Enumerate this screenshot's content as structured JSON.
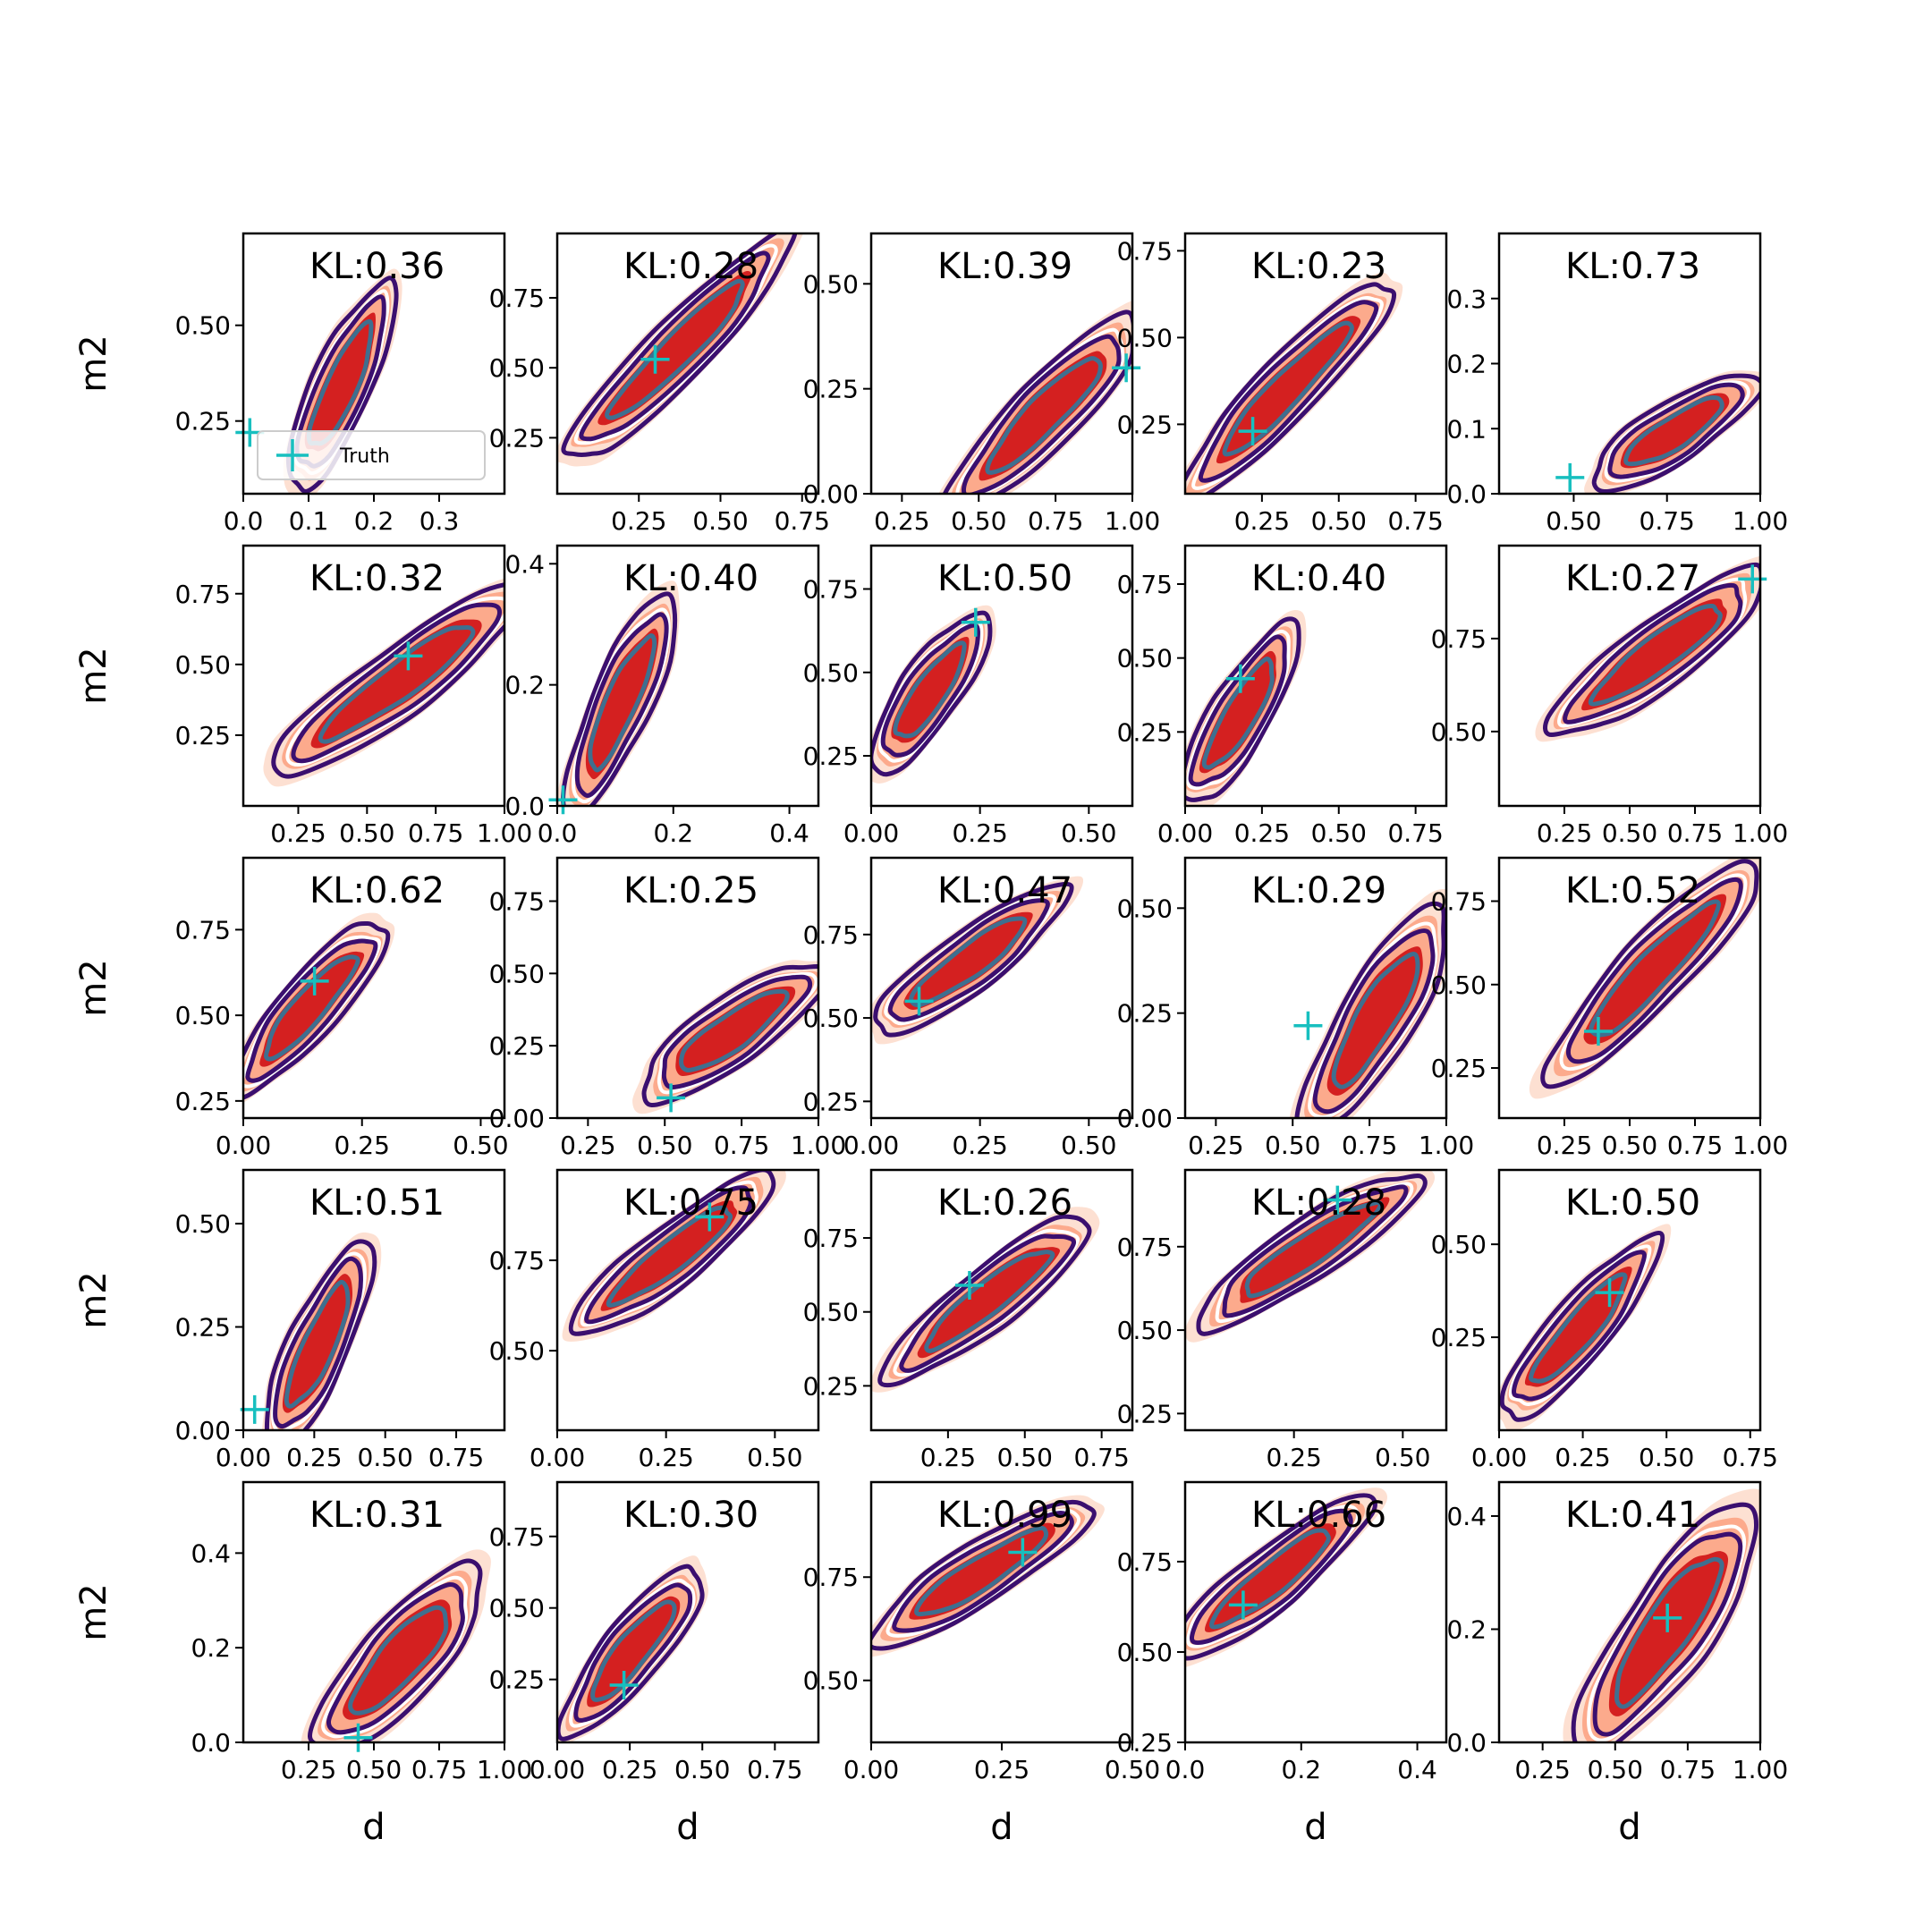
{
  "chart_data": {
    "type": "contour-grid",
    "xlabel": "d",
    "ylabel": "m2",
    "legend": {
      "label": "Truth",
      "placement": "lower-left",
      "panel": 0
    },
    "colors": {
      "fill_outer": "#fde0d2",
      "fill_mid": "#fcaa8c",
      "fill_inner": "#d42020",
      "line_outer": "#3b0f6f",
      "line_mid": "#ffffff",
      "line_inner": "#3f6f8f",
      "truth": "#17bfbf"
    },
    "panels": [
      {
        "kl": "KL:0.36",
        "xlim": [
          0,
          0.4
        ],
        "ylim": [
          0.06,
          0.74
        ],
        "xticks": [
          0.0,
          0.1,
          0.2,
          0.3
        ],
        "xticklabels": [
          "0.0",
          "0.1",
          "0.2",
          "0.3"
        ],
        "yticks": [
          0.25,
          0.5
        ],
        "yticklabels": [
          "0.25",
          "0.50"
        ],
        "truth": [
          0.01,
          0.22
        ],
        "blob": {
          "a": [
            0.1,
            0.15
          ],
          "b": [
            0.2,
            0.53
          ],
          "w": 0.065
        }
      },
      {
        "kl": "KL:0.28",
        "xlim": [
          0,
          0.8
        ],
        "ylim": [
          0.05,
          0.98
        ],
        "xticks": [
          0.25,
          0.5,
          0.75
        ],
        "xticklabels": [
          "0.25",
          "0.50",
          "0.75"
        ],
        "yticks": [
          0.25,
          0.5,
          0.75
        ],
        "yticklabels": [
          "0.25",
          "0.50",
          "0.75"
        ],
        "truth": [
          0.3,
          0.53
        ],
        "blob": {
          "a": [
            0.12,
            0.27
          ],
          "b": [
            0.62,
            0.86
          ],
          "w": 0.09
        }
      },
      {
        "kl": "KL:0.39",
        "xlim": [
          0.15,
          1.0
        ],
        "ylim": [
          0,
          0.62
        ],
        "xticks": [
          0.25,
          0.5,
          0.75,
          1.0
        ],
        "xticklabels": [
          "0.25",
          "0.50",
          "0.75",
          "1.00"
        ],
        "yticks": [
          0,
          0.25,
          0.5
        ],
        "yticklabels": [
          "0.00",
          "0.25",
          "0.50"
        ],
        "truth": [
          0.98,
          0.3
        ],
        "blob": {
          "a": [
            0.5,
            0.03
          ],
          "b": [
            0.93,
            0.35
          ],
          "w": 0.1
        }
      },
      {
        "kl": "KL:0.23",
        "xlim": [
          0,
          0.85
        ],
        "ylim": [
          0.05,
          0.8
        ],
        "xticks": [
          0.25,
          0.5,
          0.75
        ],
        "xticklabels": [
          "0.25",
          "0.50",
          "0.75"
        ],
        "yticks": [
          0.25,
          0.5,
          0.75
        ],
        "yticklabels": [
          "0.25",
          "0.50",
          "0.75"
        ],
        "truth": [
          0.22,
          0.23
        ],
        "blob": {
          "a": [
            0.08,
            0.12
          ],
          "b": [
            0.58,
            0.58
          ],
          "w": 0.09
        }
      },
      {
        "kl": "KL:0.73",
        "xlim": [
          0.3,
          1.0
        ],
        "ylim": [
          0,
          0.4
        ],
        "xticks": [
          0.5,
          0.75,
          1.0
        ],
        "xticklabels": [
          "0.50",
          "0.75",
          "1.00"
        ],
        "yticks": [
          0,
          0.1,
          0.2,
          0.3
        ],
        "yticklabels": [
          "0.0",
          "0.1",
          "0.2",
          "0.3"
        ],
        "truth": [
          0.49,
          0.025
        ],
        "blob": {
          "a": [
            0.62,
            0.04
          ],
          "b": [
            0.92,
            0.15
          ],
          "w": 0.055
        }
      },
      {
        "kl": "KL:0.32",
        "xlim": [
          0.05,
          1.0
        ],
        "ylim": [
          0,
          0.92
        ],
        "xticks": [
          0.25,
          0.5,
          0.75,
          1.0
        ],
        "xticklabels": [
          "0.25",
          "0.50",
          "0.75",
          "1.00"
        ],
        "yticks": [
          0.25,
          0.5,
          0.75
        ],
        "yticklabels": [
          "0.25",
          "0.50",
          "0.75"
        ],
        "truth": [
          0.65,
          0.53
        ],
        "blob": {
          "a": [
            0.28,
            0.2
          ],
          "b": [
            0.95,
            0.68
          ],
          "w": 0.1
        }
      },
      {
        "kl": "KL:0.40",
        "xlim": [
          0,
          0.45
        ],
        "ylim": [
          0,
          0.43
        ],
        "xticks": [
          0.0,
          0.2,
          0.4
        ],
        "xticklabels": [
          "0.0",
          "0.2",
          "0.4"
        ],
        "yticks": [
          0,
          0.2,
          0.4
        ],
        "yticklabels": [
          "0.0",
          "0.2",
          "0.4"
        ],
        "truth": [
          0.01,
          0.01
        ],
        "blob": {
          "a": [
            0.05,
            0.04
          ],
          "b": [
            0.17,
            0.3
          ],
          "w": 0.085
        }
      },
      {
        "kl": "KL:0.50",
        "xlim": [
          0,
          0.6
        ],
        "ylim": [
          0.1,
          0.88
        ],
        "xticks": [
          0.0,
          0.25,
          0.5
        ],
        "xticklabels": [
          "0.00",
          "0.25",
          "0.50"
        ],
        "yticks": [
          0.25,
          0.5,
          0.75
        ],
        "yticklabels": [
          "0.25",
          "0.50",
          "0.75"
        ],
        "truth": [
          0.24,
          0.65
        ],
        "blob": {
          "a": [
            0.05,
            0.28
          ],
          "b": [
            0.22,
            0.6
          ],
          "w": 0.065
        }
      },
      {
        "kl": "KL:0.40",
        "xlim": [
          0,
          0.85
        ],
        "ylim": [
          0,
          0.88
        ],
        "xticks": [
          0,
          0.25,
          0.5,
          0.75
        ],
        "xticklabels": [
          "0.00",
          "0.25",
          "0.50",
          "0.75"
        ],
        "yticks": [
          0.25,
          0.5,
          0.75
        ],
        "yticklabels": [
          "0.25",
          "0.50",
          "0.75"
        ],
        "truth": [
          0.18,
          0.43
        ],
        "blob": {
          "a": [
            0.06,
            0.1
          ],
          "b": [
            0.3,
            0.52
          ],
          "w": 0.08
        }
      },
      {
        "kl": "KL:0.27",
        "xlim": [
          0.0,
          1.0
        ],
        "ylim": [
          0.3,
          1.0
        ],
        "xticks": [
          0.25,
          0.5,
          0.75,
          1.0
        ],
        "xticklabels": [
          "0.25",
          "0.50",
          "0.75",
          "1.00"
        ],
        "yticks": [
          0.5,
          0.75
        ],
        "yticklabels": [
          "0.50",
          "0.75"
        ],
        "truth": [
          0.97,
          0.91
        ],
        "blob": {
          "a": [
            0.32,
            0.56
          ],
          "b": [
            0.9,
            0.86
          ],
          "w": 0.1
        }
      },
      {
        "kl": "KL:0.62",
        "xlim": [
          0,
          0.55
        ],
        "ylim": [
          0.2,
          0.96
        ],
        "xticks": [
          0,
          0.25,
          0.5
        ],
        "xticklabels": [
          "0.00",
          "0.25",
          "0.50"
        ],
        "yticks": [
          0.25,
          0.5,
          0.75
        ],
        "yticklabels": [
          "0.25",
          "0.50",
          "0.75"
        ],
        "truth": [
          0.15,
          0.6
        ],
        "blob": {
          "a": [
            0.03,
            0.35
          ],
          "b": [
            0.25,
            0.7
          ],
          "w": 0.07
        }
      },
      {
        "kl": "KL:0.25",
        "xlim": [
          0.15,
          1.0
        ],
        "ylim": [
          0,
          0.9
        ],
        "xticks": [
          0.25,
          0.5,
          0.75,
          1.0
        ],
        "xticklabels": [
          "0.25",
          "0.50",
          "0.75",
          "1.00"
        ],
        "yticks": [
          0,
          0.25,
          0.5,
          0.75
        ],
        "yticklabels": [
          "0.00",
          "0.25",
          "0.50",
          "0.75"
        ],
        "truth": [
          0.52,
          0.07
        ],
        "blob": {
          "a": [
            0.52,
            0.15
          ],
          "b": [
            0.92,
            0.45
          ],
          "w": 0.1
        }
      },
      {
        "kl": "KL:0.47",
        "xlim": [
          0,
          0.6
        ],
        "ylim": [
          0.2,
          0.98
        ],
        "xticks": [
          0,
          0.25,
          0.5
        ],
        "xticklabels": [
          "0.00",
          "0.25",
          "0.50"
        ],
        "yticks": [
          0.25,
          0.5,
          0.75
        ],
        "yticklabels": [
          "0.25",
          "0.50",
          "0.75"
        ],
        "truth": [
          0.11,
          0.55
        ],
        "blob": {
          "a": [
            0.07,
            0.52
          ],
          "b": [
            0.38,
            0.82
          ],
          "w": 0.08
        }
      },
      {
        "kl": "KL:0.29",
        "xlim": [
          0.15,
          1.0
        ],
        "ylim": [
          0,
          0.62
        ],
        "xticks": [
          0.25,
          0.5,
          0.75,
          1.0
        ],
        "xticklabels": [
          "0.25",
          "0.50",
          "0.75",
          "1.00"
        ],
        "yticks": [
          0,
          0.25,
          0.5
        ],
        "yticklabels": [
          "0.00",
          "0.25",
          "0.50"
        ],
        "truth": [
          0.55,
          0.22
        ],
        "blob": {
          "a": [
            0.62,
            0.05
          ],
          "b": [
            0.92,
            0.42
          ],
          "w": 0.11
        }
      },
      {
        "kl": "KL:0.52",
        "xlim": [
          0,
          1.0
        ],
        "ylim": [
          0.1,
          0.88
        ],
        "xticks": [
          0.25,
          0.5,
          0.75,
          1.0
        ],
        "xticklabels": [
          "0.25",
          "0.50",
          "0.75",
          "1.00"
        ],
        "yticks": [
          0.25,
          0.5,
          0.75
        ],
        "yticklabels": [
          "0.25",
          "0.50",
          "0.75"
        ],
        "truth": [
          0.38,
          0.36
        ],
        "blob": {
          "a": [
            0.3,
            0.3
          ],
          "b": [
            0.88,
            0.78
          ],
          "w": 0.1
        }
      },
      {
        "kl": "KL:0.51",
        "xlim": [
          0,
          0.92
        ],
        "ylim": [
          0,
          0.63
        ],
        "xticks": [
          0,
          0.25,
          0.5,
          0.75
        ],
        "xticklabels": [
          "0.00",
          "0.25",
          "0.50",
          "0.75"
        ],
        "yticks": [
          0,
          0.25,
          0.5
        ],
        "yticklabels": [
          "0.00",
          "0.25",
          "0.50"
        ],
        "truth": [
          0.04,
          0.05
        ],
        "blob": {
          "a": [
            0.15,
            0.03
          ],
          "b": [
            0.38,
            0.38
          ],
          "w": 0.09
        }
      },
      {
        "kl": "KL:0.75",
        "xlim": [
          0,
          0.6
        ],
        "ylim": [
          0.28,
          1.0
        ],
        "xticks": [
          0,
          0.25,
          0.5
        ],
        "xticklabels": [
          "0.00",
          "0.25",
          "0.50"
        ],
        "yticks": [
          0.5,
          0.75
        ],
        "yticklabels": [
          "0.50",
          "0.75"
        ],
        "truth": [
          0.35,
          0.87
        ],
        "blob": {
          "a": [
            0.1,
            0.61
          ],
          "b": [
            0.43,
            0.92
          ],
          "w": 0.07
        }
      },
      {
        "kl": "KL:0.26",
        "xlim": [
          0,
          0.85
        ],
        "ylim": [
          0.1,
          0.98
        ],
        "xticks": [
          0.25,
          0.5,
          0.75
        ],
        "xticklabels": [
          "0.25",
          "0.50",
          "0.75"
        ],
        "yticks": [
          0.25,
          0.5,
          0.75
        ],
        "yticklabels": [
          "0.25",
          "0.50",
          "0.75"
        ],
        "truth": [
          0.32,
          0.59
        ],
        "blob": {
          "a": [
            0.14,
            0.35
          ],
          "b": [
            0.62,
            0.74
          ],
          "w": 0.09
        }
      },
      {
        "kl": "KL:0.28",
        "xlim": [
          0,
          0.6
        ],
        "ylim": [
          0.2,
          0.98
        ],
        "xticks": [
          0.25,
          0.5
        ],
        "xticklabels": [
          "0.25",
          "0.50"
        ],
        "yticks": [
          0.25,
          0.5,
          0.75
        ],
        "yticklabels": [
          "0.25",
          "0.50",
          "0.75"
        ],
        "truth": [
          0.35,
          0.89
        ],
        "blob": {
          "a": [
            0.1,
            0.58
          ],
          "b": [
            0.47,
            0.9
          ],
          "w": 0.065
        }
      },
      {
        "kl": "KL:0.50",
        "xlim": [
          0,
          0.78
        ],
        "ylim": [
          0,
          0.7
        ],
        "xticks": [
          0,
          0.25,
          0.5,
          0.75
        ],
        "xticklabels": [
          "0.00",
          "0.25",
          "0.50",
          "0.75"
        ],
        "yticks": [
          0.25,
          0.5
        ],
        "yticklabels": [
          "0.25",
          "0.50"
        ],
        "truth": [
          0.33,
          0.37
        ],
        "blob": {
          "a": [
            0.08,
            0.1
          ],
          "b": [
            0.4,
            0.44
          ],
          "w": 0.08
        }
      },
      {
        "kl": "KL:0.31",
        "xlim": [
          0,
          1.0
        ],
        "ylim": [
          0,
          0.55
        ],
        "xticks": [
          0.25,
          0.5,
          0.75,
          1.0
        ],
        "xticklabels": [
          "0.25",
          "0.50",
          "0.75",
          "1.00"
        ],
        "yticks": [
          0,
          0.2,
          0.4
        ],
        "yticklabels": [
          "0.0",
          "0.2",
          "0.4"
        ],
        "truth": [
          0.44,
          0.01
        ],
        "blob": {
          "a": [
            0.4,
            0.05
          ],
          "b": [
            0.8,
            0.3
          ],
          "w": 0.12
        }
      },
      {
        "kl": "KL:0.30",
        "xlim": [
          0,
          0.9
        ],
        "ylim": [
          0.03,
          0.94
        ],
        "xticks": [
          0,
          0.25,
          0.5,
          0.75
        ],
        "xticklabels": [
          "0.00",
          "0.25",
          "0.50",
          "0.75"
        ],
        "yticks": [
          0.25,
          0.5,
          0.75
        ],
        "yticklabels": [
          "0.25",
          "0.50",
          "0.75"
        ],
        "truth": [
          0.23,
          0.23
        ],
        "blob": {
          "a": [
            0.1,
            0.15
          ],
          "b": [
            0.42,
            0.55
          ],
          "w": 0.09
        }
      },
      {
        "kl": "KL:0.99",
        "xlim": [
          0,
          0.5
        ],
        "ylim": [
          0.35,
          0.98
        ],
        "xticks": [
          0,
          0.25,
          0.5
        ],
        "xticklabels": [
          "0.00",
          "0.25",
          "0.50"
        ],
        "yticks": [
          0.5,
          0.75
        ],
        "yticklabels": [
          "0.50",
          "0.75"
        ],
        "truth": [
          0.29,
          0.81
        ],
        "blob": {
          "a": [
            0.06,
            0.64
          ],
          "b": [
            0.36,
            0.88
          ],
          "w": 0.055
        }
      },
      {
        "kl": "KL:0.66",
        "xlim": [
          0,
          0.45
        ],
        "ylim": [
          0.25,
          0.97
        ],
        "xticks": [
          0,
          0.2,
          0.4
        ],
        "xticklabels": [
          "0.0",
          "0.2",
          "0.4"
        ],
        "yticks": [
          0.25,
          0.5,
          0.75
        ],
        "yticklabels": [
          "0.25",
          "0.50",
          "0.75"
        ],
        "truth": [
          0.1,
          0.63
        ],
        "blob": {
          "a": [
            0.03,
            0.55
          ],
          "b": [
            0.27,
            0.86
          ],
          "w": 0.065
        }
      },
      {
        "kl": "KL:0.41",
        "xlim": [
          0.1,
          1.0
        ],
        "ylim": [
          0,
          0.46
        ],
        "xticks": [
          0.25,
          0.5,
          0.75,
          1.0
        ],
        "xticklabels": [
          "0.25",
          "0.50",
          "0.75",
          "1.00"
        ],
        "yticks": [
          0,
          0.2,
          0.4
        ],
        "yticklabels": [
          "0.0",
          "0.2",
          "0.4"
        ],
        "truth": [
          0.68,
          0.22
        ],
        "blob": {
          "a": [
            0.48,
            0.05
          ],
          "b": [
            0.88,
            0.35
          ],
          "w": 0.13
        }
      }
    ]
  }
}
